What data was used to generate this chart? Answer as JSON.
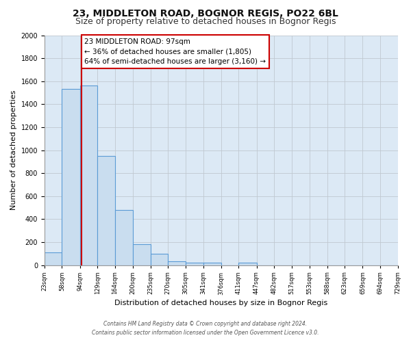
{
  "title": "23, MIDDLETON ROAD, BOGNOR REGIS, PO22 6BL",
  "subtitle": "Size of property relative to detached houses in Bognor Regis",
  "xlabel": "Distribution of detached houses by size in Bognor Regis",
  "ylabel": "Number of detached properties",
  "bar_edges": [
    23,
    58,
    94,
    129,
    164,
    200,
    235,
    270,
    305,
    341,
    376,
    411,
    447,
    482,
    517,
    553,
    588,
    623,
    659,
    694,
    729
  ],
  "bar_heights": [
    110,
    1535,
    1560,
    950,
    480,
    180,
    100,
    35,
    20,
    20,
    0,
    20,
    0,
    0,
    0,
    0,
    0,
    0,
    0,
    0
  ],
  "bar_color": "#c9ddef",
  "bar_edge_color": "#5b9bd5",
  "red_line_x": 97,
  "annotation_line1": "23 MIDDLETON ROAD: 97sqm",
  "annotation_line2": "← 36% of detached houses are smaller (1,805)",
  "annotation_line3": "64% of semi-detached houses are larger (3,160) →",
  "annotation_facecolor": "#ffffff",
  "annotation_edgecolor": "#cc0000",
  "ylim": [
    0,
    2000
  ],
  "yticks": [
    0,
    200,
    400,
    600,
    800,
    1000,
    1200,
    1400,
    1600,
    1800,
    2000
  ],
  "plot_bg": "#dce9f5",
  "fig_bg": "#ffffff",
  "grid_color": "#c0c8d0",
  "title_fontsize": 10,
  "subtitle_fontsize": 9,
  "xlabel_fontsize": 8,
  "ylabel_fontsize": 8,
  "xtick_fontsize": 6,
  "ytick_fontsize": 7,
  "footer_line1": "Contains HM Land Registry data © Crown copyright and database right 2024.",
  "footer_line2": "Contains public sector information licensed under the Open Government Licence v3.0."
}
